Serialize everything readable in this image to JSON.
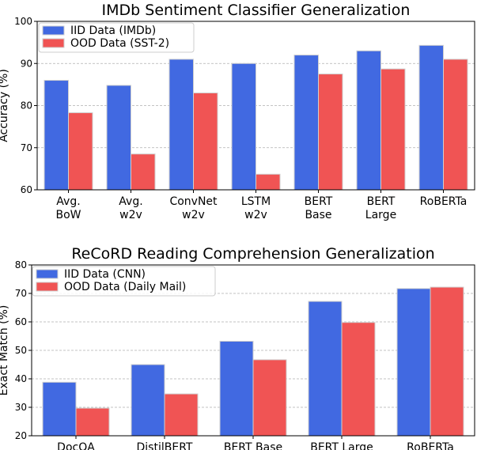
{
  "colors": {
    "iid": "#4169e1",
    "ood": "#f05454",
    "grid": "#b0b0b0"
  },
  "chart_data": [
    {
      "type": "bar",
      "title": "IMDb Sentiment Classifier Generalization",
      "xlabel": "",
      "ylabel": "Accuracy (%)",
      "ylim": [
        60,
        100
      ],
      "yticks": [
        60,
        70,
        80,
        90,
        100
      ],
      "grid": true,
      "legend_position": "top-left",
      "categories": [
        [
          "Avg.",
          "BoW"
        ],
        [
          "Avg.",
          "w2v"
        ],
        [
          "ConvNet",
          "w2v"
        ],
        [
          "LSTM",
          "w2v"
        ],
        [
          "BERT",
          "Base"
        ],
        [
          "BERT",
          "Large"
        ],
        [
          "RoBERTa"
        ]
      ],
      "series": [
        {
          "name": "IID Data (IMDb)",
          "values": [
            86,
            84.8,
            91,
            90,
            92,
            93,
            94.3
          ]
        },
        {
          "name": "OOD Data (SST-2)",
          "values": [
            78.3,
            68.5,
            83,
            63.7,
            87.5,
            88.7,
            91
          ]
        }
      ]
    },
    {
      "type": "bar",
      "title": "ReCoRD Reading Comprehension Generalization",
      "xlabel": "",
      "ylabel": "Exact Match (%)",
      "ylim": [
        20,
        80
      ],
      "yticks": [
        20,
        30,
        40,
        50,
        60,
        70,
        80
      ],
      "grid": true,
      "legend_position": "top-left",
      "categories": [
        [
          "DocQA"
        ],
        [
          "DistilBERT"
        ],
        [
          "BERT Base"
        ],
        [
          "BERT Large"
        ],
        [
          "RoBERTa"
        ]
      ],
      "series": [
        {
          "name": "IID Data (CNN)",
          "values": [
            38.8,
            45,
            53.2,
            67.2,
            71.7
          ]
        },
        {
          "name": "OOD Data (Daily Mail)",
          "values": [
            29.7,
            34.7,
            46.7,
            59.8,
            72.2
          ]
        }
      ]
    }
  ]
}
